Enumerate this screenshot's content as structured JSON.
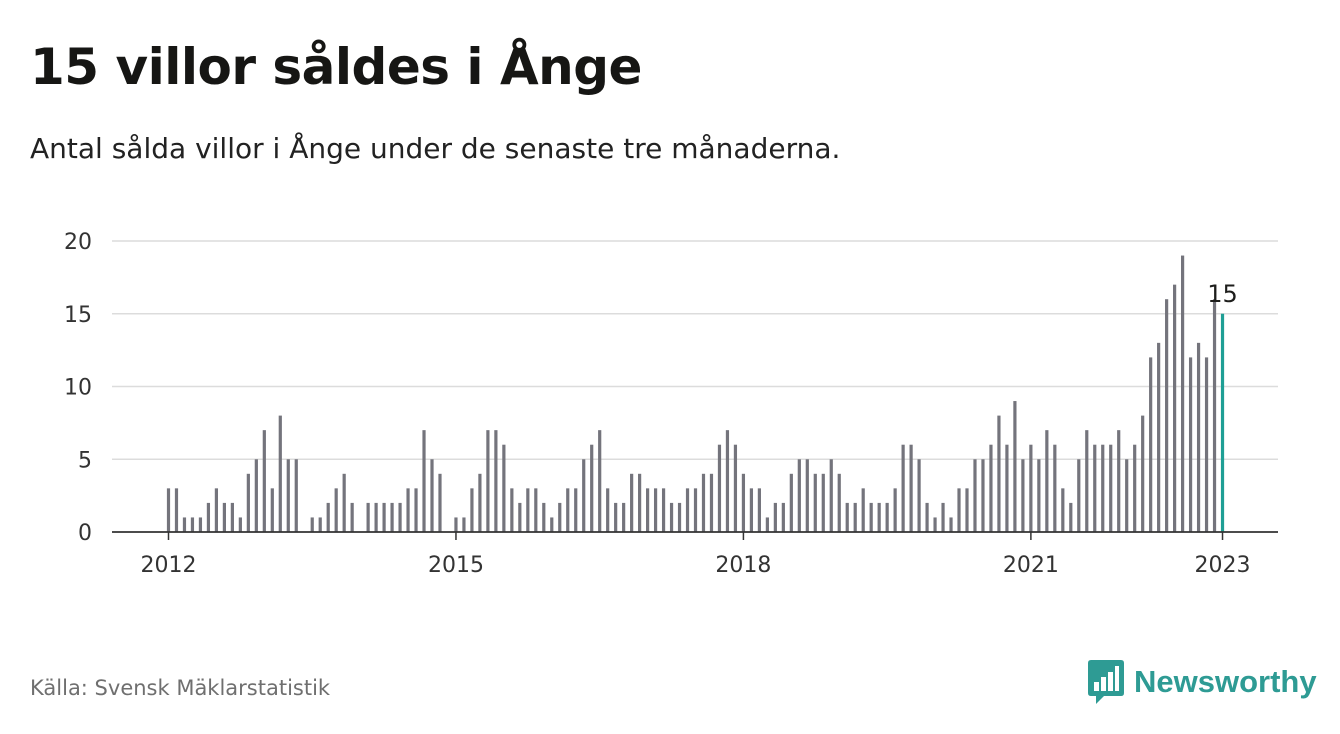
{
  "header": {
    "title": "15 villor såldes i Ånge",
    "subtitle": "Antal sålda villor i Ånge under de senaste tre månaderna."
  },
  "footer": {
    "source": "Källa: Svensk Mäklarstatistik",
    "brand": "Newsworthy",
    "brand_icon": "bar-chart-speech-bubble-icon"
  },
  "colors": {
    "bar": "#74747c",
    "highlight": "#1f9f95",
    "grid": "#dcdcdc",
    "axis": "#333333",
    "brand": "#2e9b94"
  },
  "chart_data": {
    "type": "bar",
    "title": "15 villor såldes i Ånge",
    "subtitle": "Antal sålda villor i Ånge under de senaste tre månaderna.",
    "xlabel": "",
    "ylabel": "",
    "ylim": [
      0,
      20
    ],
    "yticks": [
      "0",
      "5",
      "10",
      "15",
      "20"
    ],
    "xticks": [
      "2012",
      "2015",
      "2018",
      "2021",
      "2023"
    ],
    "grid": true,
    "start_month": "2012-01",
    "end_month": "2023-01",
    "values": [
      3,
      3,
      1,
      1,
      1,
      2,
      3,
      2,
      2,
      1,
      4,
      5,
      7,
      3,
      8,
      5,
      5,
      0,
      1,
      1,
      2,
      3,
      4,
      2,
      0,
      2,
      2,
      2,
      2,
      2,
      3,
      3,
      7,
      5,
      4,
      0,
      1,
      1,
      3,
      4,
      7,
      7,
      6,
      3,
      2,
      3,
      3,
      2,
      1,
      2,
      3,
      3,
      5,
      6,
      7,
      3,
      2,
      2,
      4,
      4,
      3,
      3,
      3,
      2,
      2,
      3,
      3,
      4,
      4,
      6,
      7,
      6,
      4,
      3,
      3,
      1,
      2,
      2,
      4,
      5,
      5,
      4,
      4,
      5,
      4,
      2,
      2,
      3,
      2,
      2,
      2,
      3,
      6,
      6,
      5,
      2,
      1,
      2,
      1,
      3,
      3,
      5,
      5,
      6,
      8,
      6,
      9,
      5,
      6,
      5,
      7,
      6,
      3,
      2,
      5,
      7,
      6,
      6,
      6,
      7,
      5,
      6,
      8,
      12,
      13,
      16,
      17,
      19,
      12,
      13,
      12,
      16,
      15
    ],
    "highlight_label": "15"
  }
}
